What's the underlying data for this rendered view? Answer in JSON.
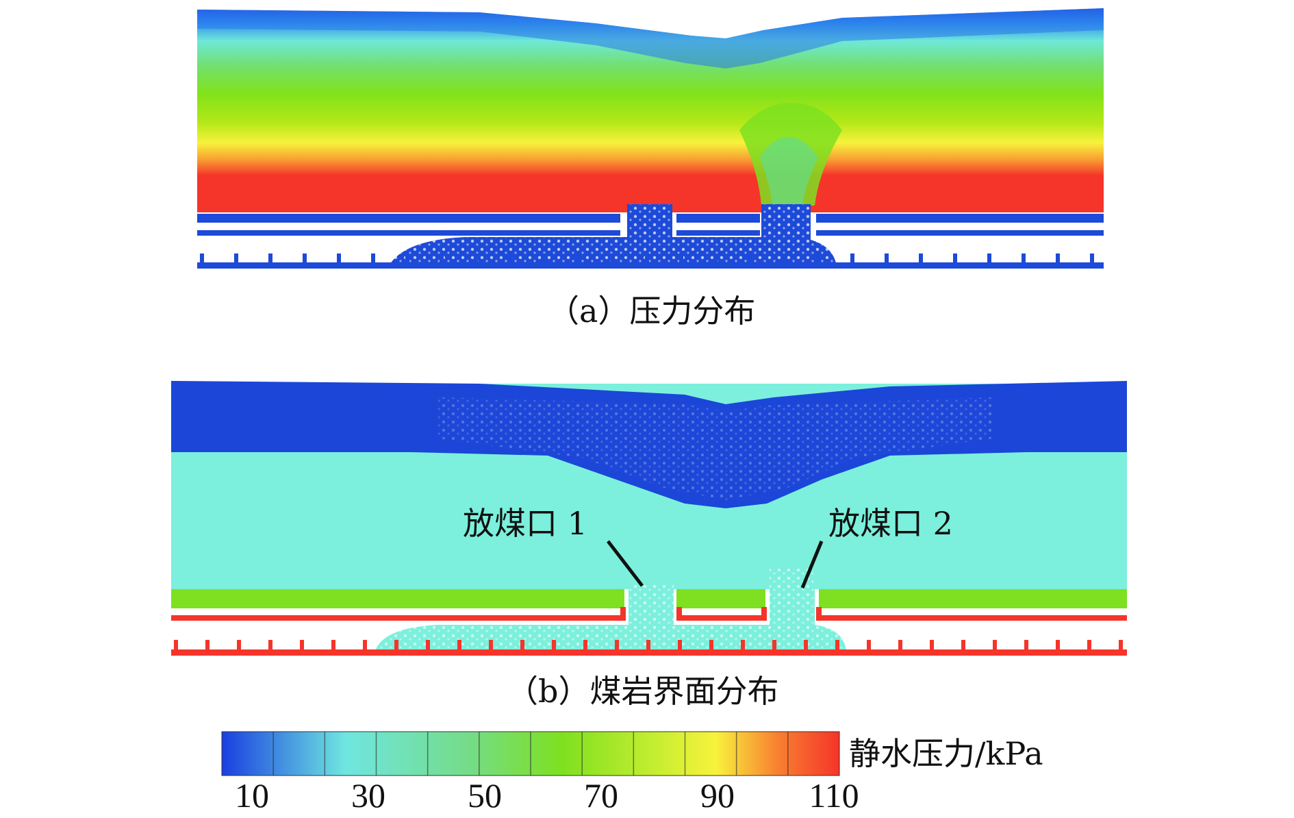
{
  "panel_a": {
    "caption": "（a）压力分布"
  },
  "panel_b": {
    "caption": "（b）煤岩界面分布",
    "outlet_1": "放煤口 1",
    "outlet_2": "放煤口 2"
  },
  "colorbar": {
    "label": "静水压力/kPa",
    "ticks": [
      "10",
      "30",
      "50",
      "70",
      "90",
      "110"
    ],
    "min": 10,
    "max": 110,
    "colors": [
      "#1d4fd8",
      "#7cf0dc",
      "#7ee020",
      "#f3ff40",
      "#f5342a"
    ]
  }
}
